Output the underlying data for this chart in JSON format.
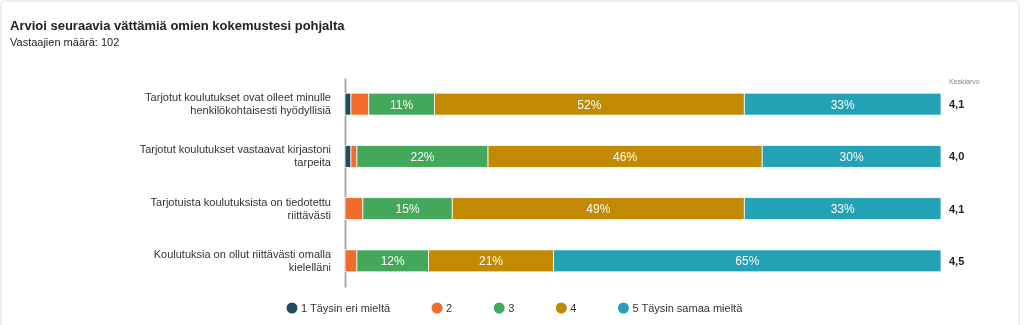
{
  "chart_data": {
    "type": "bar",
    "orientation": "horizontal",
    "stacked": true,
    "title": "Arvioi seuraavia vättämiä omien kokemustesi pohjalta",
    "subtitle": "Vastaajien määrä: 102",
    "categories": [
      "Tarjotut koulutukset ovat olleet minulle henkilökohtaisesti hyödyllisiä",
      "Tarjotut koulutukset vastaavat kirjastoni tarpeita",
      "Tarjotuista koulutuksista on tiedotettu riittävästi",
      "Koulutuksia on ollut riittävästi omalla kielelläni"
    ],
    "series": [
      {
        "name": "1 Täysin eri mieltä",
        "color": "#1f4e5f",
        "values": [
          1,
          1,
          0,
          0
        ],
        "value_labels": [
          null,
          null,
          null,
          null
        ]
      },
      {
        "name": "2",
        "color": "#f26b2a",
        "values": [
          3,
          1,
          3,
          2
        ],
        "value_labels": [
          null,
          null,
          null,
          null
        ]
      },
      {
        "name": "3",
        "color": "#43a85a",
        "values": [
          11,
          22,
          15,
          12
        ],
        "value_labels": [
          "11%",
          "22%",
          "15%",
          "12%"
        ]
      },
      {
        "name": "4",
        "color": "#c18a00",
        "values": [
          52,
          46,
          49,
          21
        ],
        "value_labels": [
          "52%",
          "46%",
          "49%",
          "21%"
        ]
      },
      {
        "name": "5 Täysin samaa mieltä",
        "color": "#23a1b5",
        "values": [
          33,
          30,
          33,
          65
        ],
        "value_labels": [
          "33%",
          "30%",
          "33%",
          "65%"
        ]
      }
    ],
    "xlim": [
      0,
      100
    ],
    "tick_labels": "y",
    "grid": false,
    "legend": "bottom",
    "annotations": [
      "Keskiarvo",
      "4,1",
      "4,0",
      "4,1",
      "4,5"
    ]
  }
}
